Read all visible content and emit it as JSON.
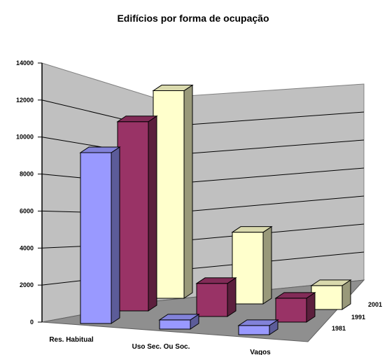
{
  "chart_data": {
    "type": "bar",
    "title": "Edifícios por forma de ocupação",
    "categories": [
      "Res. Habitual",
      "Uso Sec. Ou Soc.",
      "Vagos"
    ],
    "series": [
      {
        "name": "1981",
        "values": [
          9300,
          500,
          500
        ],
        "color": "#9999ff"
      },
      {
        "name": "1991",
        "values": [
          10300,
          1800,
          1300
        ],
        "color": "#993366"
      },
      {
        "name": "2001",
        "values": [
          11300,
          3900,
          1300
        ],
        "color": "#ffffcc"
      }
    ],
    "ylim": [
      0,
      14000
    ],
    "yticks": [
      "0",
      "2000",
      "4000",
      "6000",
      "8000",
      "10000",
      "12000",
      "14000"
    ],
    "ytick_values": [
      0,
      2000,
      4000,
      6000,
      8000,
      10000,
      12000,
      14000
    ],
    "depth_labels": [
      "1981",
      "1991",
      "2001"
    ],
    "grid": true,
    "legend": "none"
  }
}
